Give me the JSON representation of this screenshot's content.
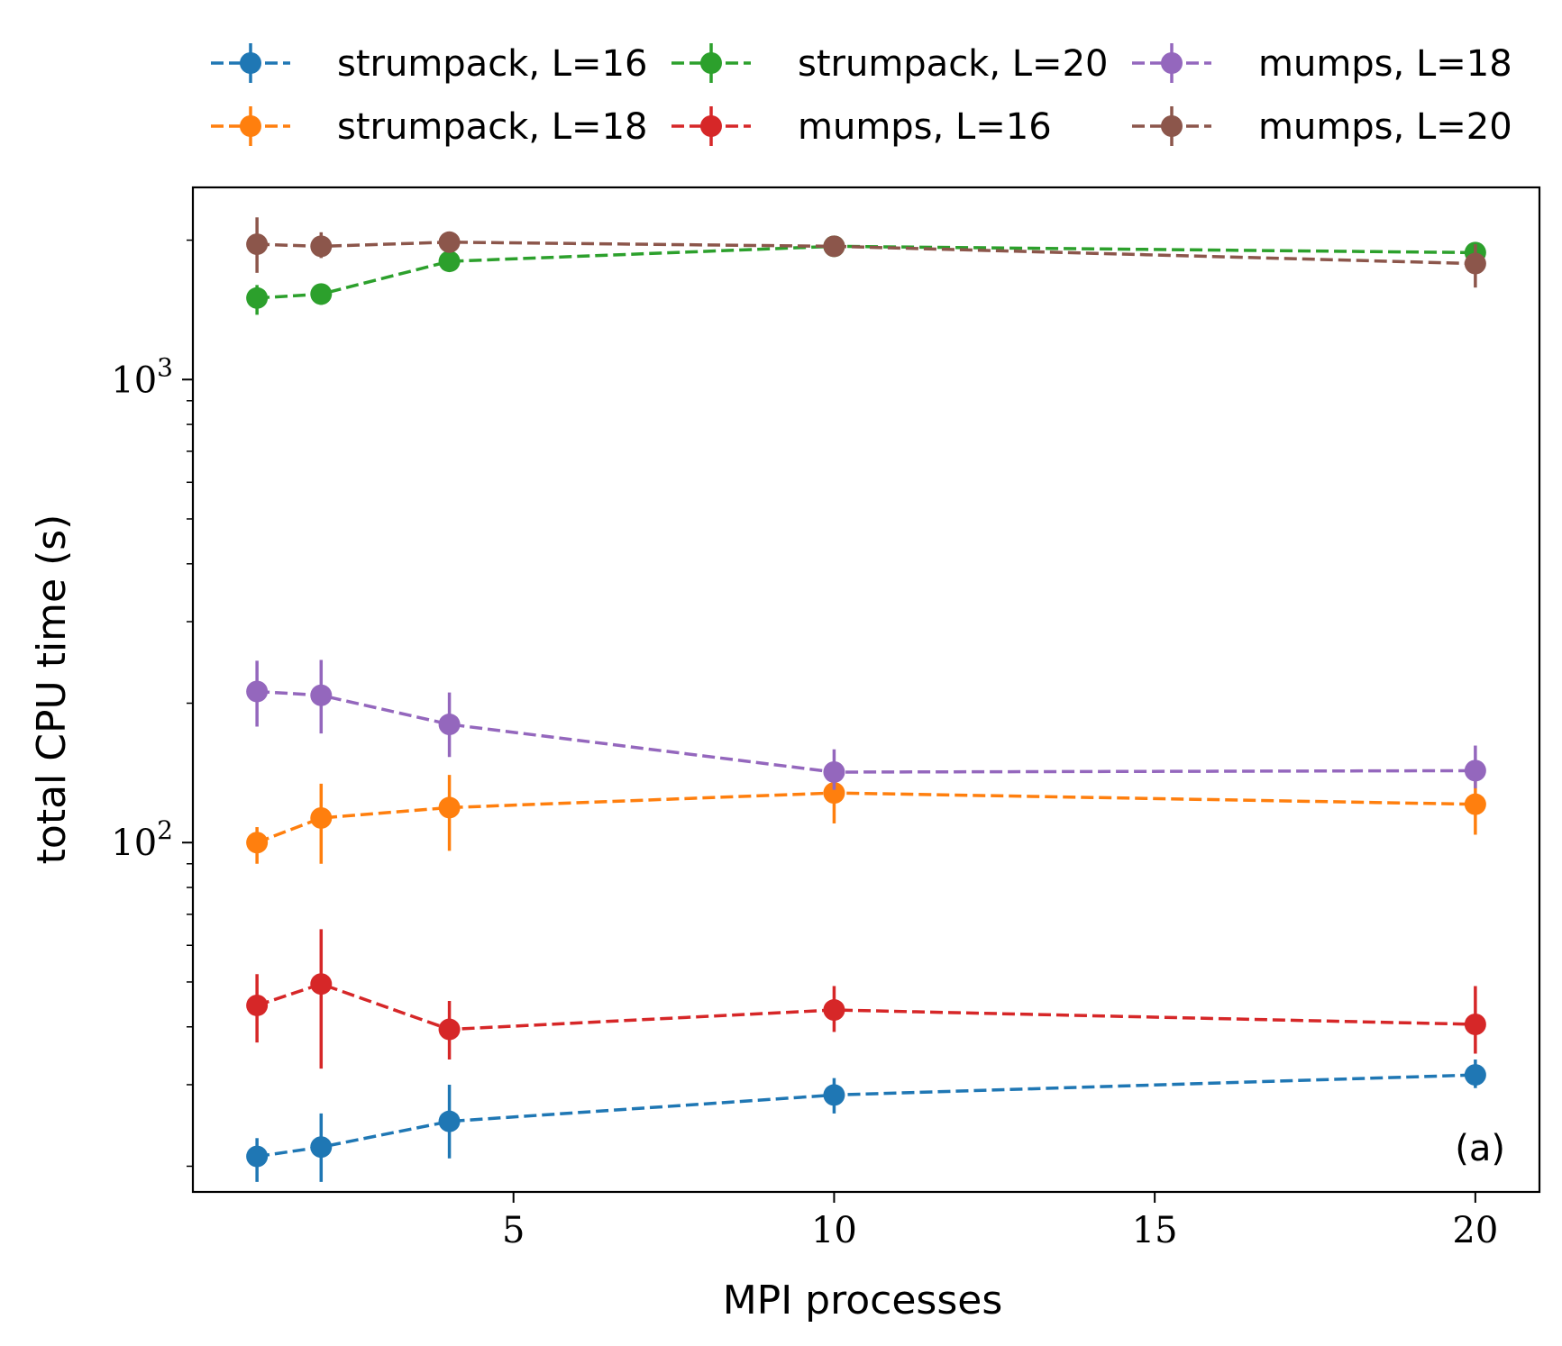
{
  "chart_data": {
    "type": "line",
    "title": "",
    "panel_label": "(a)",
    "xlabel": "MPI processes",
    "ylabel": "total CPU time (s)",
    "xlim": [
      0.0,
      21.0
    ],
    "ylim": [
      17.6,
      2600
    ],
    "yscale": "log",
    "x_ticks": [
      5,
      10,
      15,
      20
    ],
    "x_tick_labels": [
      "5",
      "10",
      "15",
      "20"
    ],
    "y_ticks": [
      100,
      1000
    ],
    "y_tick_labels": [
      {
        "base": "10",
        "exp": "2"
      },
      {
        "base": "10",
        "exp": "3"
      }
    ],
    "grid": false,
    "legend_position": "top (outside, 3 columns)",
    "line_style": "dashed with circle markers and error bars",
    "series": [
      {
        "name": "strumpack, L=16",
        "color": "#1f77b4",
        "x": [
          1,
          2,
          4,
          10,
          20
        ],
        "y": [
          21,
          22,
          25,
          28.5,
          31.5
        ],
        "yerr_low": [
          18.5,
          18.5,
          20.8,
          26.0,
          29.5
        ],
        "yerr_high": [
          23,
          26,
          30,
          31,
          34
        ]
      },
      {
        "name": "strumpack, L=18",
        "color": "#ff7f0e",
        "x": [
          1,
          2,
          4,
          10,
          20
        ],
        "y": [
          100,
          113,
          119,
          128,
          121
        ],
        "yerr_low": [
          90,
          90,
          96,
          110,
          104
        ],
        "yerr_high": [
          108,
          134,
          140,
          145,
          137
        ]
      },
      {
        "name": "strumpack, L=20",
        "color": "#2ca02c",
        "x": [
          1,
          2,
          4,
          10,
          20
        ],
        "y": [
          1500,
          1530,
          1800,
          1940,
          1880
        ],
        "yerr_low": [
          1380,
          1450,
          1720,
          1880,
          1820
        ],
        "yerr_high": [
          1600,
          1610,
          1880,
          2000,
          1940
        ]
      },
      {
        "name": "mumps, L=16",
        "color": "#d62728",
        "x": [
          1,
          2,
          4,
          10,
          20
        ],
        "y": [
          44.5,
          49.5,
          39.5,
          43.5,
          40.5
        ],
        "yerr_low": [
          37,
          32.5,
          34,
          39,
          35
        ],
        "yerr_high": [
          52,
          65,
          45.5,
          49,
          49
        ]
      },
      {
        "name": "mumps, L=18",
        "color": "#9467bd",
        "x": [
          1,
          2,
          4,
          10,
          20
        ],
        "y": [
          212,
          208,
          180,
          142,
          143
        ],
        "yerr_low": [
          178,
          172,
          153,
          130,
          131
        ],
        "yerr_high": [
          247,
          248,
          211,
          159,
          162
        ]
      },
      {
        "name": "mumps, L=20",
        "color": "#8c564b",
        "x": [
          1,
          2,
          4,
          10,
          20
        ],
        "y": [
          1960,
          1940,
          1980,
          1940,
          1780
        ],
        "yerr_low": [
          1700,
          1830,
          1900,
          1880,
          1580
        ],
        "yerr_high": [
          2240,
          2080,
          2060,
          2000,
          1960
        ]
      }
    ],
    "legend_order": [
      0,
      1,
      2,
      3,
      4,
      5
    ]
  }
}
